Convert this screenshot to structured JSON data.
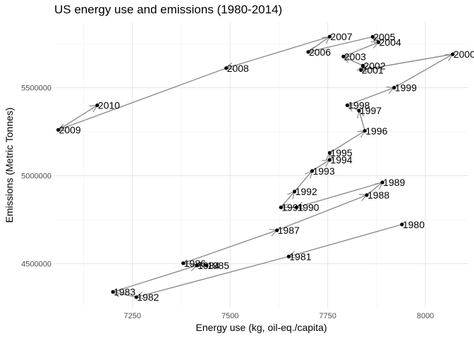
{
  "chart_data": {
    "type": "scatter",
    "title": "US energy use and emissions (1980-2014)",
    "xlabel": "Energy use (kg, oil-eq./capita)",
    "ylabel": "Emissions (Metric Tonnes)",
    "xlim": [
      7050,
      8110
    ],
    "ylim": [
      4250000,
      5870000
    ],
    "x_ticks": [
      7250,
      7500,
      7750,
      8000
    ],
    "x_tick_labels": [
      "7250",
      "7500",
      "7750",
      "8000"
    ],
    "y_ticks": [
      4500000,
      5000000,
      5500000
    ],
    "y_tick_labels": [
      "4500000",
      "5000000",
      "5500000"
    ],
    "grid": true,
    "connected_path": true,
    "points": [
      {
        "label": "1980",
        "x": 7940,
        "y": 4723000
      },
      {
        "label": "1981",
        "x": 7650,
        "y": 4541000
      },
      {
        "label": "1982",
        "x": 7260,
        "y": 4310000
      },
      {
        "label": "1983",
        "x": 7200,
        "y": 4340000
      },
      {
        "label": "1984",
        "x": 7415,
        "y": 4490000
      },
      {
        "label": "1985",
        "x": 7440,
        "y": 4490000
      },
      {
        "label": "1986",
        "x": 7380,
        "y": 4503000
      },
      {
        "label": "1987",
        "x": 7620,
        "y": 4690000
      },
      {
        "label": "1988",
        "x": 7850,
        "y": 4890000
      },
      {
        "label": "1989",
        "x": 7890,
        "y": 4962000
      },
      {
        "label": "1990",
        "x": 7670,
        "y": 4820000
      },
      {
        "label": "1991",
        "x": 7630,
        "y": 4820000
      },
      {
        "label": "1992",
        "x": 7665,
        "y": 4910000
      },
      {
        "label": "1993",
        "x": 7710,
        "y": 5027000
      },
      {
        "label": "1994",
        "x": 7755,
        "y": 5090000
      },
      {
        "label": "1995",
        "x": 7755,
        "y": 5130000
      },
      {
        "label": "1996",
        "x": 7845,
        "y": 5255000
      },
      {
        "label": "1997",
        "x": 7830,
        "y": 5370000
      },
      {
        "label": "1998",
        "x": 7800,
        "y": 5400000
      },
      {
        "label": "1999",
        "x": 7920,
        "y": 5500000
      },
      {
        "label": "2000",
        "x": 8070,
        "y": 5690000
      },
      {
        "label": "2001",
        "x": 7835,
        "y": 5600000
      },
      {
        "label": "2002",
        "x": 7840,
        "y": 5625000
      },
      {
        "label": "2003",
        "x": 7790,
        "y": 5677000
      },
      {
        "label": "2004",
        "x": 7880,
        "y": 5758000
      },
      {
        "label": "2005",
        "x": 7865,
        "y": 5789000
      },
      {
        "label": "2006",
        "x": 7700,
        "y": 5703000
      },
      {
        "label": "2007",
        "x": 7755,
        "y": 5790000
      },
      {
        "label": "2008",
        "x": 7490,
        "y": 5611000
      },
      {
        "label": "2009",
        "x": 7060,
        "y": 5260000
      },
      {
        "label": "2010",
        "x": 7160,
        "y": 5400000
      }
    ]
  }
}
